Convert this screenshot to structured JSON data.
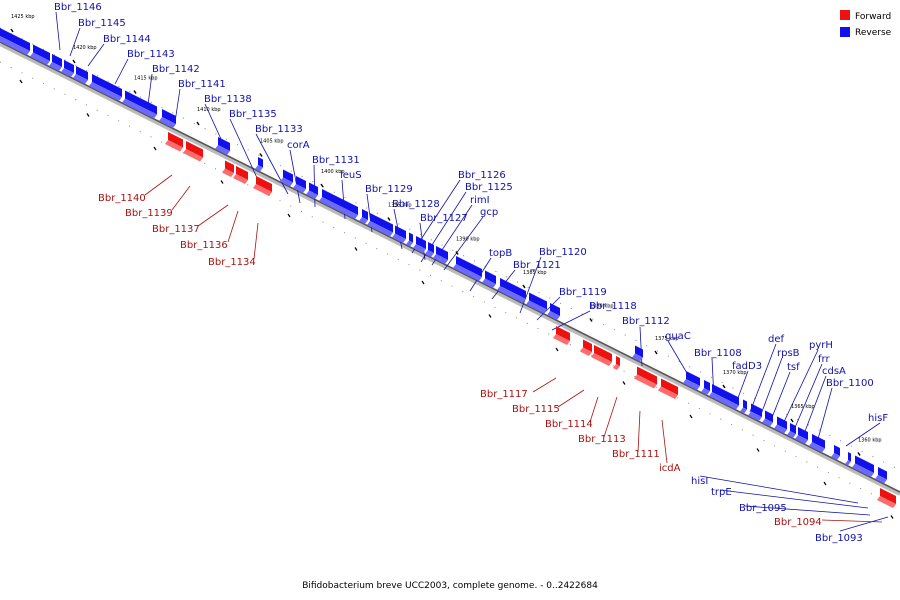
{
  "caption": "Bifidobacterium breve UCC2003, complete genome. - 0..2422684",
  "legend": [
    {
      "label": "Forward",
      "color": "#ee1111"
    },
    {
      "label": "Reverse",
      "color": "#1111ee"
    }
  ],
  "colors": {
    "forward": "#ee1111",
    "reverse": "#1111ee",
    "forward_text": "#aa1111",
    "reverse_text": "#1111aa"
  },
  "ticks": [
    "1425 kbp",
    "1420 kbp",
    "1415 kbp",
    "1410 kbp",
    "1405 kbp",
    "1400 kbp",
    "1395 kbp",
    "1390 kbp",
    "1385 kbp",
    "1380 kbp",
    "1375 kbp",
    "1370 kbp",
    "1365 kbp",
    "1360 kbp"
  ],
  "reverse_labels": [
    "Bbr_1146",
    "Bbr_1145",
    "Bbr_1144",
    "Bbr_1143",
    "Bbr_1142",
    "Bbr_1141",
    "Bbr_1138",
    "Bbr_1135",
    "Bbr_1133",
    "corA",
    "Bbr_1131",
    "leuS",
    "Bbr_1129",
    "Bbr_1128",
    "Bbr_1127",
    "Bbr_1126",
    "Bbr_1125",
    "rimI",
    "gcp",
    "topB",
    "Bbr_1121",
    "Bbr_1120",
    "Bbr_1119",
    "Bbr_1118",
    "Bbr_1112",
    "guaC",
    "Bbr_1108",
    "fadD3",
    "def",
    "rpsB",
    "tsf",
    "pyrH",
    "frr",
    "cdsA",
    "Bbr_1100",
    "hisF",
    "hisI",
    "trpE",
    "Bbr_1095",
    "Bbr_1093"
  ],
  "forward_labels": [
    "Bbr_1140",
    "Bbr_1139",
    "Bbr_1137",
    "Bbr_1136",
    "Bbr_1134",
    "Bbr_1117",
    "Bbr_1115",
    "Bbr_1114",
    "Bbr_1113",
    "Bbr_1111",
    "icdA",
    "Bbr_1094"
  ]
}
